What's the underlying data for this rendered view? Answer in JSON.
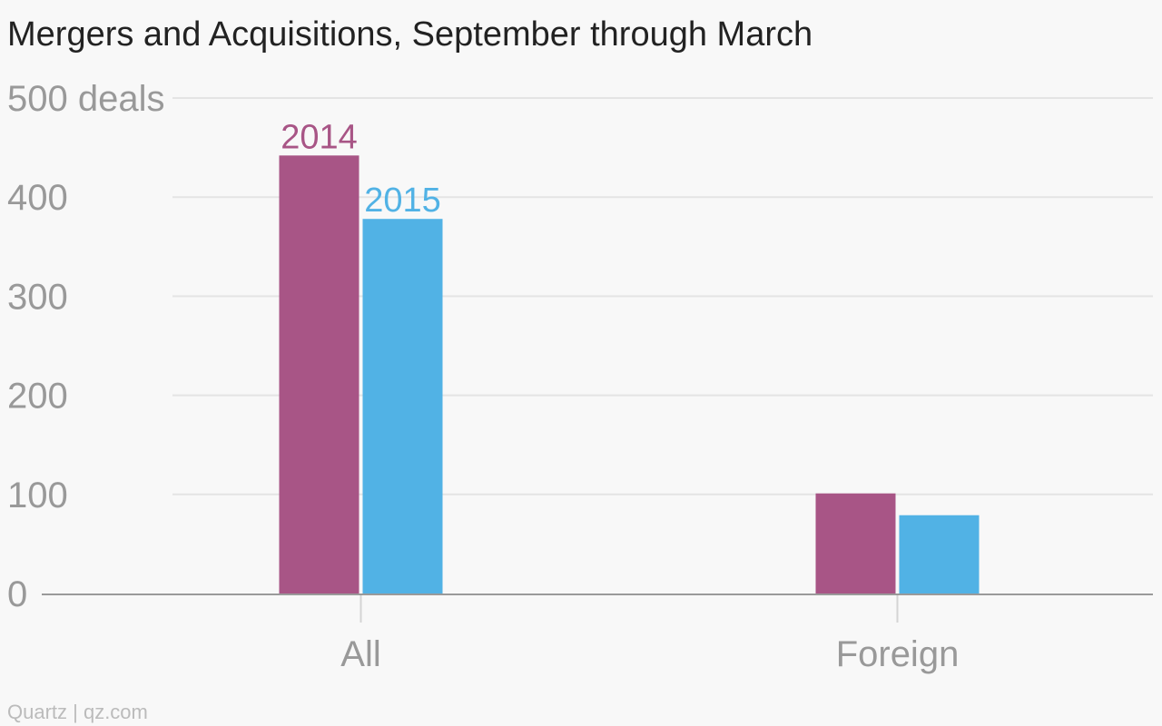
{
  "chart_data": {
    "type": "bar",
    "title": "Mergers and Acquisitions, September through March",
    "categories": [
      "All",
      "Foreign"
    ],
    "series": [
      {
        "name": "2014",
        "values": [
          442,
          101
        ],
        "color": "#a85586"
      },
      {
        "name": "2015",
        "values": [
          378,
          79
        ],
        "color": "#51b2e5"
      }
    ],
    "y_ticks": [
      "0",
      "100",
      "200",
      "300",
      "400",
      "500 deals"
    ],
    "ylim": [
      0,
      500
    ],
    "grid": true,
    "legend": "labels above first-category bars"
  },
  "source": "Quartz | qz.com"
}
